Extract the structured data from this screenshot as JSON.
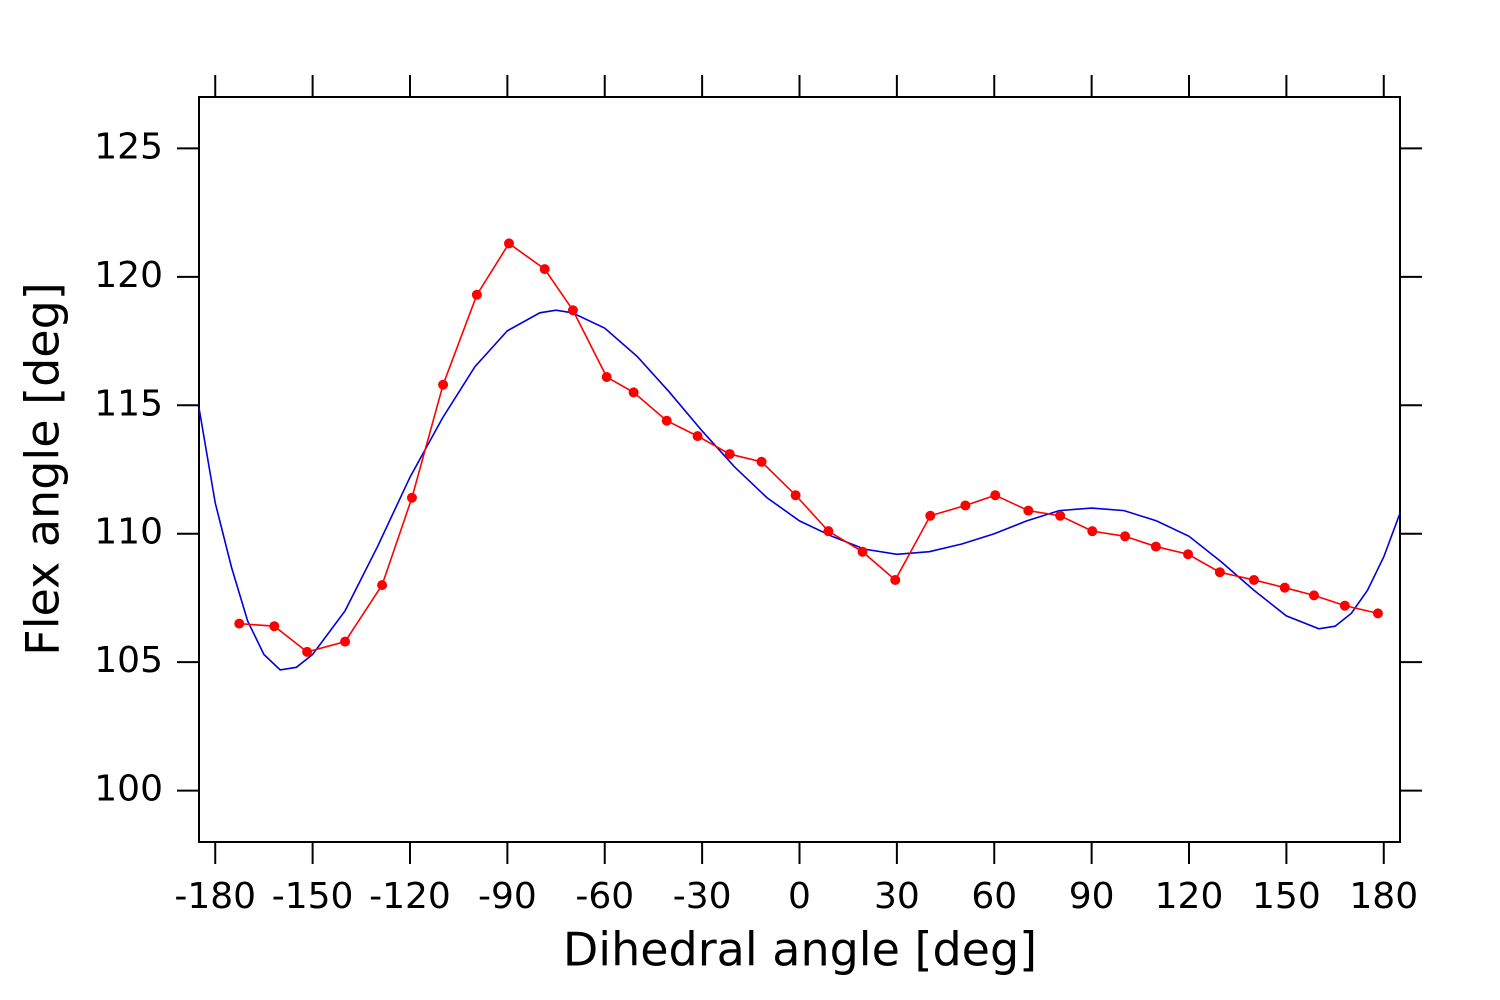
{
  "chart_data": {
    "type": "line",
    "x_label": "Dihedral angle [deg]",
    "y_label": "Flex angle [deg]",
    "xlim": [
      -185,
      185
    ],
    "ylim": [
      98,
      127
    ],
    "xticks": [
      -180,
      -150,
      -120,
      -90,
      -60,
      -30,
      0,
      30,
      60,
      90,
      120,
      150,
      180
    ],
    "yticks": [
      100,
      105,
      110,
      115,
      120,
      125
    ],
    "grid": false,
    "series": [
      {
        "color": "#ff0000",
        "marker": "circle",
        "x": [
          -172.6,
          -161.8,
          -151.7,
          -140,
          -128.6,
          -119.4,
          -109.8,
          -99.4,
          -89.5,
          -78.5,
          -69.8,
          -59.4,
          -51.1,
          -40.9,
          -31.4,
          -21.5,
          -11.7,
          -1.2,
          8.9,
          19.4,
          29.5,
          40.3,
          51.1,
          60.3,
          70.5,
          80.3,
          90.2,
          100.3,
          109.8,
          119.7,
          129.5,
          140,
          149.5,
          158.5,
          168,
          178.2
        ],
        "values": [
          106.5,
          106.4,
          105.4,
          105.8,
          108.0,
          111.4,
          115.8,
          119.3,
          121.3,
          120.3,
          118.7,
          116.1,
          115.5,
          114.4,
          113.8,
          113.1,
          112.8,
          111.5,
          110.1,
          109.3,
          108.2,
          110.7,
          111.1,
          111.5,
          110.9,
          110.7,
          110.1,
          109.9,
          109.5,
          109.2,
          108.5,
          108.2,
          107.9,
          107.6,
          107.2,
          106.9
        ]
      },
      {
        "color": "#0000dd",
        "x": [
          -185,
          -180,
          -175,
          -170,
          -165,
          -160,
          -155,
          -150,
          -140,
          -130,
          -120,
          -110,
          -100,
          -90,
          -80,
          -75,
          -70,
          -60,
          -50,
          -40,
          -30,
          -20,
          -10,
          0,
          10,
          20,
          30,
          40,
          50,
          60,
          70,
          80,
          90,
          100,
          110,
          120,
          130,
          140,
          150,
          160,
          165,
          170,
          175,
          180,
          185
        ],
        "values": [
          114.9,
          111.2,
          108.7,
          106.6,
          105.3,
          104.7,
          104.8,
          105.3,
          107.0,
          109.5,
          112.2,
          114.5,
          116.5,
          117.9,
          118.6,
          118.7,
          118.6,
          118.0,
          116.9,
          115.5,
          114.0,
          112.6,
          111.4,
          110.5,
          109.9,
          109.4,
          109.2,
          109.3,
          109.6,
          110.0,
          110.5,
          110.9,
          111.0,
          110.9,
          110.5,
          109.9,
          108.9,
          107.8,
          106.8,
          106.3,
          106.4,
          106.9,
          107.8,
          109.1,
          110.8
        ]
      }
    ]
  }
}
